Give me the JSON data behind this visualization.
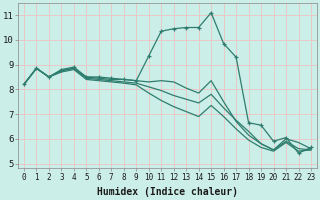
{
  "xlabel": "Humidex (Indice chaleur)",
  "bg_color": "#cceee8",
  "grid_color": "#e8c8c8",
  "line_color": "#2e7d6e",
  "xlim": [
    -0.5,
    23.5
  ],
  "ylim": [
    4.8,
    11.5
  ],
  "yticks": [
    5,
    6,
    7,
    8,
    9,
    10,
    11
  ],
  "xticks": [
    0,
    1,
    2,
    3,
    4,
    5,
    6,
    7,
    8,
    9,
    10,
    11,
    12,
    13,
    14,
    15,
    16,
    17,
    18,
    19,
    20,
    21,
    22,
    23
  ],
  "x": [
    0,
    1,
    2,
    3,
    4,
    5,
    6,
    7,
    8,
    9,
    10,
    11,
    12,
    13,
    14,
    15,
    16,
    17,
    18,
    19,
    20,
    21,
    22,
    23
  ],
  "line_main": [
    8.2,
    8.85,
    8.5,
    8.8,
    8.9,
    8.5,
    8.5,
    8.45,
    8.4,
    8.35,
    9.35,
    10.35,
    10.45,
    10.5,
    10.5,
    11.1,
    9.85,
    9.3,
    6.65,
    6.55,
    5.9,
    6.05,
    5.42,
    5.65
  ],
  "line2": [
    8.2,
    8.85,
    8.5,
    8.75,
    8.85,
    8.5,
    8.45,
    8.4,
    8.4,
    8.35,
    8.3,
    8.35,
    8.3,
    8.05,
    7.85,
    8.35,
    7.5,
    6.7,
    6.15,
    5.8,
    5.55,
    6.0,
    5.85,
    5.6
  ],
  "line3": [
    8.2,
    8.85,
    8.5,
    8.75,
    8.85,
    8.45,
    8.4,
    8.35,
    8.3,
    8.25,
    8.1,
    7.95,
    7.75,
    7.6,
    7.45,
    7.8,
    7.25,
    6.75,
    6.3,
    5.8,
    5.55,
    5.9,
    5.6,
    5.55
  ],
  "line4": [
    8.2,
    8.85,
    8.5,
    8.7,
    8.8,
    8.4,
    8.35,
    8.3,
    8.25,
    8.18,
    7.85,
    7.55,
    7.3,
    7.1,
    6.9,
    7.35,
    6.9,
    6.4,
    5.95,
    5.65,
    5.5,
    5.85,
    5.5,
    5.55
  ]
}
